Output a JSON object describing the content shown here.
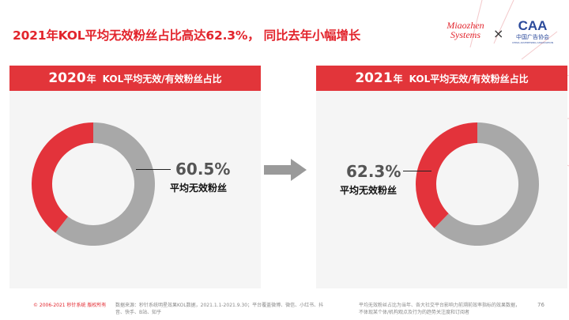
{
  "header": {
    "title": "2021年KOL平均无效粉丝占比高达62.3%， 同比去年小幅增长"
  },
  "logos": {
    "miaozhen": [
      "Miaozhen",
      "Systems"
    ],
    "separator": "×",
    "caa_mark": "CAA",
    "caa_name": "中国广告协会",
    "caa_english": "CHINA ADVERTISING ASSOCIATION"
  },
  "panels": [
    {
      "year": "2020",
      "year_suffix": "年",
      "subtitle": "KOL平均无效/有效粉丝占比",
      "value_label": "60.5%",
      "value_caption": "平均无效粉丝"
    },
    {
      "year": "2021",
      "year_suffix": "年",
      "subtitle": "KOL平均无效/有效粉丝占比",
      "value_label": "62.3%",
      "value_caption": "平均无效粉丝"
    }
  ],
  "chart_data": [
    {
      "type": "pie",
      "title": "2020年 KOL平均无效/有效粉丝占比",
      "slices": [
        {
          "label": "平均无效粉丝",
          "value": 60.5,
          "color": "#a8a8a8"
        },
        {
          "label": "",
          "value": 39.5,
          "color": "#e3333b"
        }
      ]
    },
    {
      "type": "pie",
      "title": "2021年 KOL平均无效/有效粉丝占比",
      "slices": [
        {
          "label": "平均无效粉丝",
          "value": 62.3,
          "color": "#a8a8a8"
        },
        {
          "label": "",
          "value": 37.7,
          "color": "#e3333b"
        }
      ]
    }
  ],
  "footer": {
    "copyright": "© 2006-2021 秒针系统 版权所有",
    "source": "数据来源：秒针系统明星效果KOL数据，2021.1.1-2021.9.30；平台覆盖微博、微信、小红书、抖音、快手、B站、知乎",
    "note": "平均无效粉丝占比为当年、各大社交平台影响力前溯前效率指标的效果数据，不体现某个体/机构观点及行为的趋势关注度和订阅者",
    "page": "76"
  },
  "colors": {
    "brand_red": "#e2242c",
    "header_red": "#e2353a",
    "grey": "#a8a8a8"
  }
}
